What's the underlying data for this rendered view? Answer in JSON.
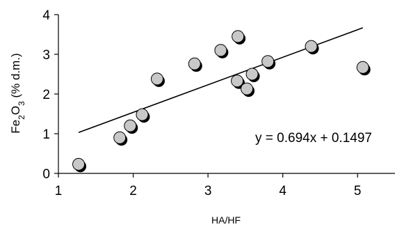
{
  "chart_data": {
    "type": "scatter",
    "title": "",
    "xlabel": "HA/HF",
    "ylabel": "Fe2O3 (% d.m.)",
    "ylabel_parts": {
      "pre": "Fe",
      "sub1": "2",
      "mid": "O",
      "sub2": "3",
      "post": " (% d.m.)"
    },
    "xlim": [
      1,
      5.5
    ],
    "ylim": [
      0,
      4
    ],
    "xticks": [
      1,
      2,
      3,
      4,
      5
    ],
    "yticks": [
      0,
      1,
      2,
      3,
      4
    ],
    "xtick_labels": [
      "1",
      "2",
      "3",
      "4",
      "5"
    ],
    "ytick_labels": [
      "0",
      "1",
      "2",
      "3",
      "4"
    ],
    "grid": false,
    "legend": "none",
    "colors": {
      "marker_fill": "#c8c8c8",
      "marker_shadow": "#000000",
      "marker_edge": "#000000",
      "trendline": "#000000"
    },
    "points": [
      {
        "x": 1.27,
        "y": 0.23
      },
      {
        "x": 1.82,
        "y": 0.9
      },
      {
        "x": 1.96,
        "y": 1.2
      },
      {
        "x": 2.12,
        "y": 1.48
      },
      {
        "x": 2.32,
        "y": 2.38
      },
      {
        "x": 2.82,
        "y": 2.76
      },
      {
        "x": 3.17,
        "y": 3.1
      },
      {
        "x": 3.4,
        "y": 3.45
      },
      {
        "x": 3.39,
        "y": 2.33
      },
      {
        "x": 3.52,
        "y": 2.13
      },
      {
        "x": 3.59,
        "y": 2.5
      },
      {
        "x": 3.8,
        "y": 2.82
      },
      {
        "x": 4.38,
        "y": 3.2
      },
      {
        "x": 5.07,
        "y": 2.67
      }
    ],
    "trendline": {
      "slope": 0.694,
      "intercept": 0.1497,
      "x_range": [
        1.27,
        5.07
      ],
      "equation": "y = 0.694x + 0.1497"
    }
  }
}
